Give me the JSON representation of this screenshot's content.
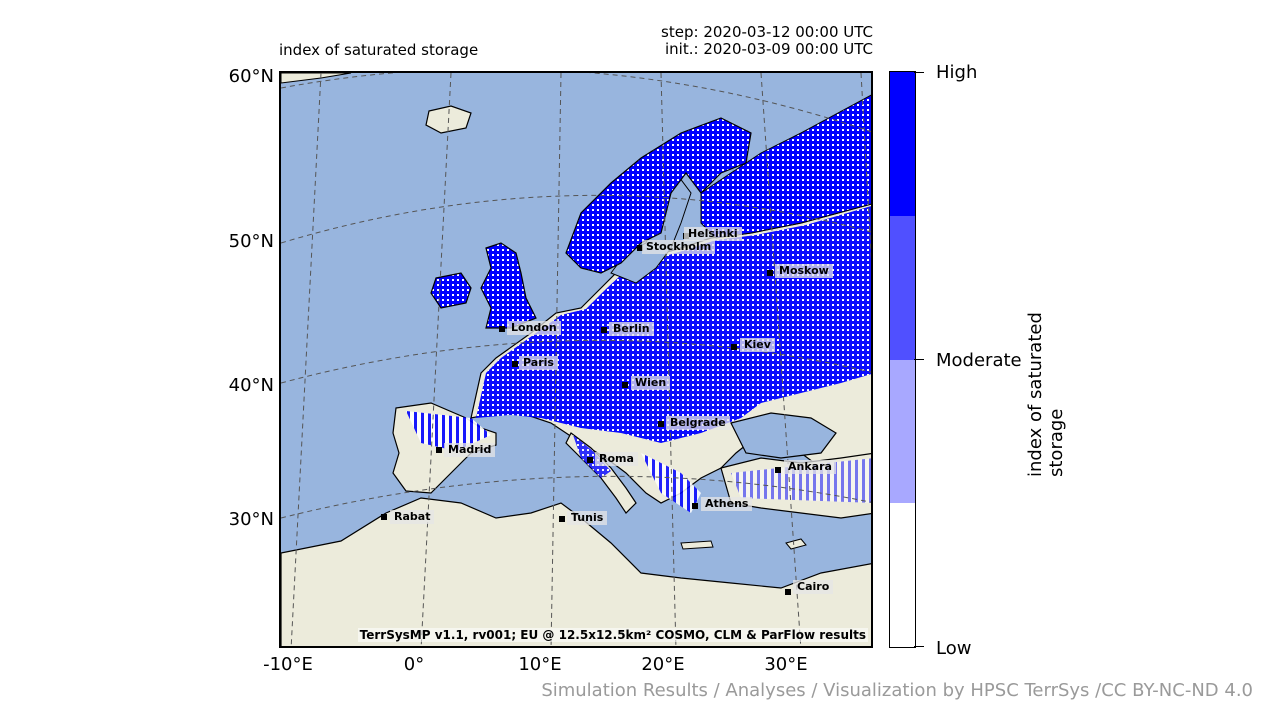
{
  "header": {
    "variable_title": "index of saturated storage",
    "step": "step: 2020-03-12 00:00 UTC",
    "init": "init.: 2020-03-09 00:00 UTC"
  },
  "axes": {
    "lat_labels": [
      "60°N",
      "50°N",
      "40°N",
      "30°N"
    ],
    "lon_labels": [
      "-10°E",
      "0°",
      "10°E",
      "20°E",
      "30°E"
    ]
  },
  "colorbar": {
    "title": "index of saturated storage",
    "labels": {
      "high": "High",
      "moderate": "Moderate",
      "low": "Low"
    },
    "colors": [
      "#0000ff",
      "#5050ff",
      "#a8a8ff",
      "#ffffff"
    ]
  },
  "map": {
    "ocean_color": "#98b5de",
    "land_color": "#ecebdb",
    "saturation_color": "#0000ff",
    "credit": "TerrSysMP v1.1, rv001; EU @ 12.5x12.5km² COSMO, CLM & ParFlow results"
  },
  "cities": [
    {
      "name": "Helsinki"
    },
    {
      "name": "Stockholm"
    },
    {
      "name": "Moskow"
    },
    {
      "name": "London"
    },
    {
      "name": "Berlin"
    },
    {
      "name": "Kiev"
    },
    {
      "name": "Paris"
    },
    {
      "name": "Wien"
    },
    {
      "name": "Belgrade"
    },
    {
      "name": "Madrid"
    },
    {
      "name": "Roma"
    },
    {
      "name": "Ankara"
    },
    {
      "name": "Athens"
    },
    {
      "name": "Rabat"
    },
    {
      "name": "Tunis"
    },
    {
      "name": "Cairo"
    }
  ],
  "footer": "Simulation Results / Analyses / Visualization by HPSC TerrSys /CC BY-NC-ND 4.0"
}
